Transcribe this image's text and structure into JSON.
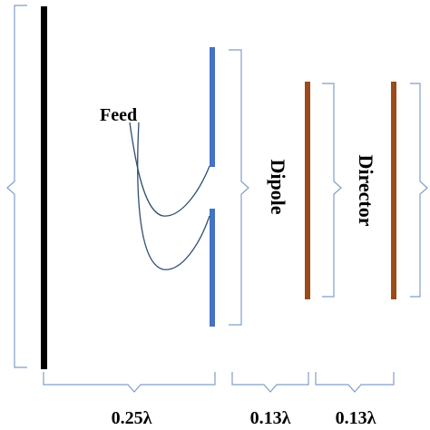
{
  "labels": {
    "feed": "Feed",
    "dipole": "Dipole",
    "director": "Director",
    "spacing_reflector_dipole": "0.25λ",
    "spacing_dipole_director1": "0.13λ",
    "spacing_director1_director2": "0.13λ"
  },
  "colors": {
    "reflector": "#000000",
    "dipole": "#4472c4",
    "director": "#9c4a1a",
    "bracket": "#7f9fc8",
    "feed_line": "#2f4f6f",
    "text": "#000000"
  }
}
